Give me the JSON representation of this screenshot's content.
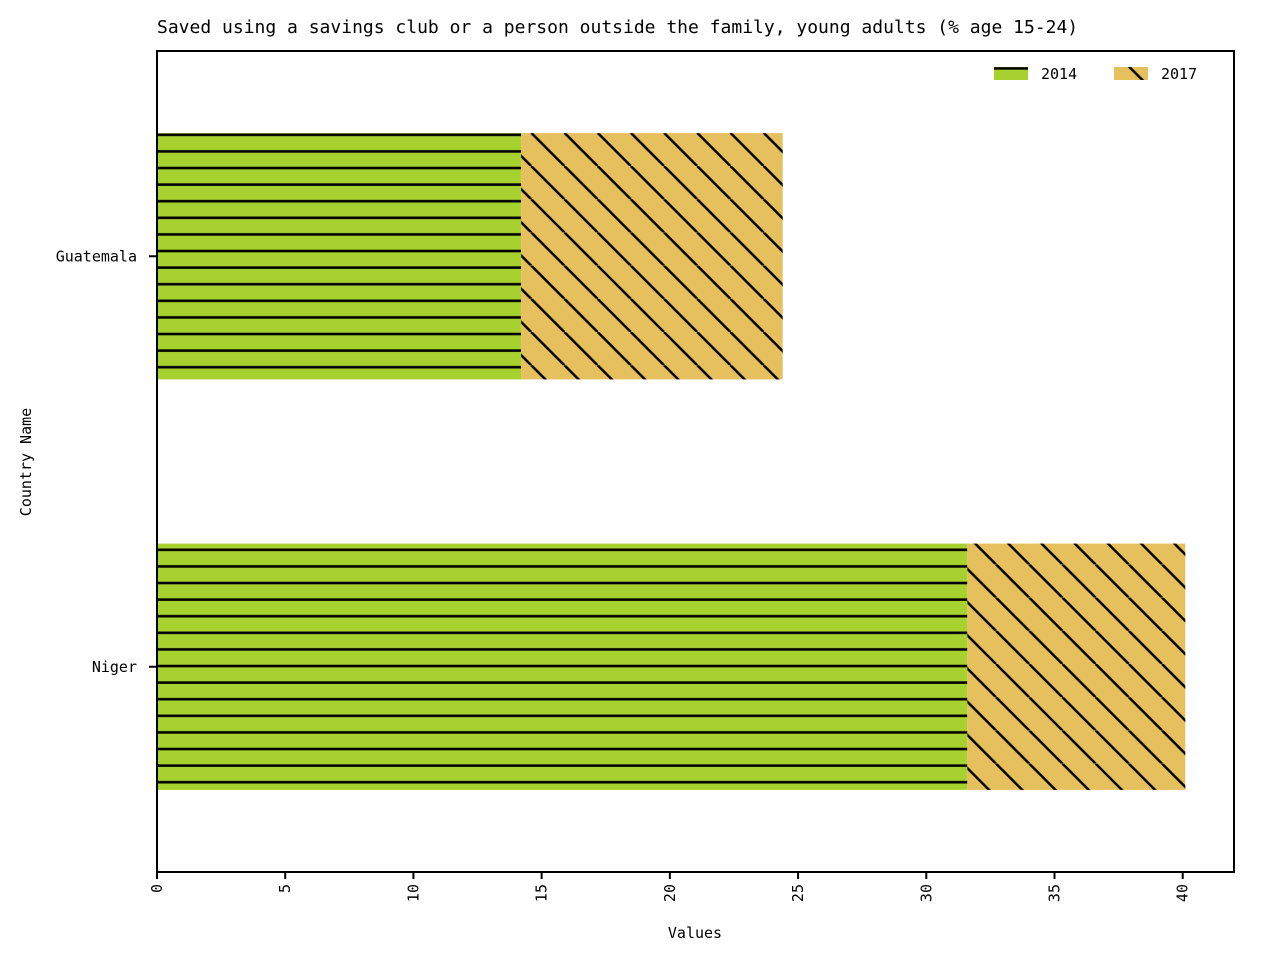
{
  "chart_data": {
    "type": "bar",
    "orientation": "horizontal",
    "stacked": true,
    "title": "Saved using a savings club or a person outside the family, young adults (% age 15-24)",
    "xlabel": "Values",
    "ylabel": "Country Name",
    "categories": [
      "Guatemala",
      "Niger"
    ],
    "series": [
      {
        "name": "2014",
        "values": [
          14.2,
          31.6
        ],
        "color": "#a6d12e",
        "hatch": "horizontal"
      },
      {
        "name": "2017",
        "values": [
          10.2,
          8.5
        ],
        "color": "#e6c05c",
        "hatch": "diagonal"
      }
    ],
    "xlim": [
      0,
      42
    ],
    "xticks": [
      0,
      5,
      10,
      15,
      20,
      25,
      30,
      35,
      40
    ],
    "grid": false,
    "legend_position": "top-right"
  }
}
